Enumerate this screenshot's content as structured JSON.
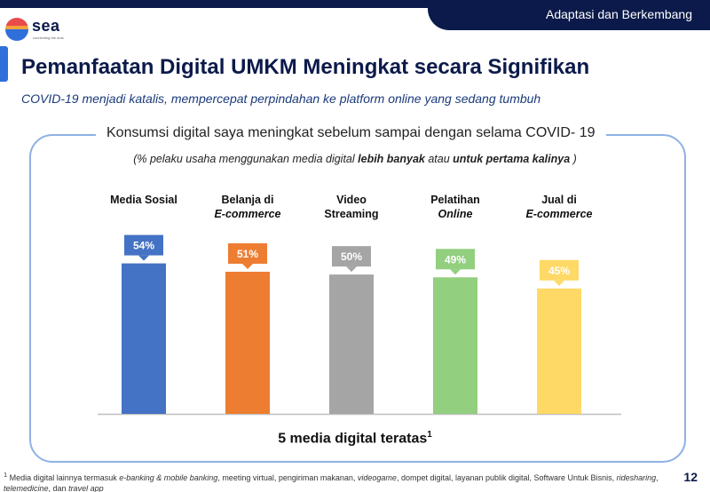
{
  "header": {
    "section_label": "Adaptasi dan Berkembang",
    "logo_word": "sea",
    "logo_tagline": "connecting the dots"
  },
  "page": {
    "title": "Pemanfaatan Digital UMKM Meningkat secara Signifikan",
    "subtitle": "COVID-19 menjadi katalis, mempercepat perpindahan ke platform online yang sedang tumbuh",
    "number": "12"
  },
  "chart_data": {
    "type": "bar",
    "title": "Konsumsi digital saya meningkat sebelum sampai dengan selama COVID- 19",
    "subtitle_parts": [
      {
        "text": "(% pelaku usaha  menggunakan media digital ",
        "bold": false
      },
      {
        "text": "lebih banyak",
        "bold": true
      },
      {
        "text": " atau ",
        "bold": false
      },
      {
        "text": "untuk pertama kalinya",
        "bold": true
      },
      {
        "text": " )",
        "bold": false
      }
    ],
    "xlabel": "5 media digital teratas",
    "xlabel_sup": "1",
    "ylabel": "",
    "ylim": [
      0,
      80
    ],
    "categories": [
      {
        "line1": "Media Sosial",
        "line1_italic": false,
        "line2": "",
        "line2_italic": false
      },
      {
        "line1": "Belanja di",
        "line1_italic": false,
        "line2": "E-commerce",
        "line2_italic": true
      },
      {
        "line1": "Video",
        "line1_italic": false,
        "line2": "Streaming",
        "line2_italic": false
      },
      {
        "line1": "Pelatihan",
        "line1_italic": false,
        "line2": "Online",
        "line2_italic": true
      },
      {
        "line1": "Jual di",
        "line1_italic": false,
        "line2": "E-commerce",
        "line2_italic": true
      }
    ],
    "values": [
      54,
      51,
      50,
      49,
      45
    ],
    "value_labels": [
      "54%",
      "51%",
      "50%",
      "49%",
      "45%"
    ],
    "colors": [
      "#4472c4",
      "#ed7d31",
      "#a5a5a5",
      "#92cf7f",
      "#ffd966"
    ],
    "grid": false,
    "legend": "none"
  },
  "footnote": {
    "parts": [
      {
        "text": "1",
        "sup": true,
        "italic": false
      },
      {
        "text": " Media digital lainnya termasuk ",
        "sup": false,
        "italic": false
      },
      {
        "text": "e-banking & mobile banking",
        "sup": false,
        "italic": true
      },
      {
        "text": ", meeting virtual, pengiriman makanan, ",
        "sup": false,
        "italic": false
      },
      {
        "text": "videogame",
        "sup": false,
        "italic": true
      },
      {
        "text": ", dompet digital, layanan publik digital,  Software Untuk Bisnis, ",
        "sup": false,
        "italic": false
      },
      {
        "text": "ridesharing",
        "sup": false,
        "italic": true
      },
      {
        "text": ", ",
        "sup": false,
        "italic": false
      },
      {
        "text": "telemedicine",
        "sup": false,
        "italic": true
      },
      {
        "text": ", dan ",
        "sup": false,
        "italic": false
      },
      {
        "text": "travel app",
        "sup": false,
        "italic": true
      }
    ]
  }
}
